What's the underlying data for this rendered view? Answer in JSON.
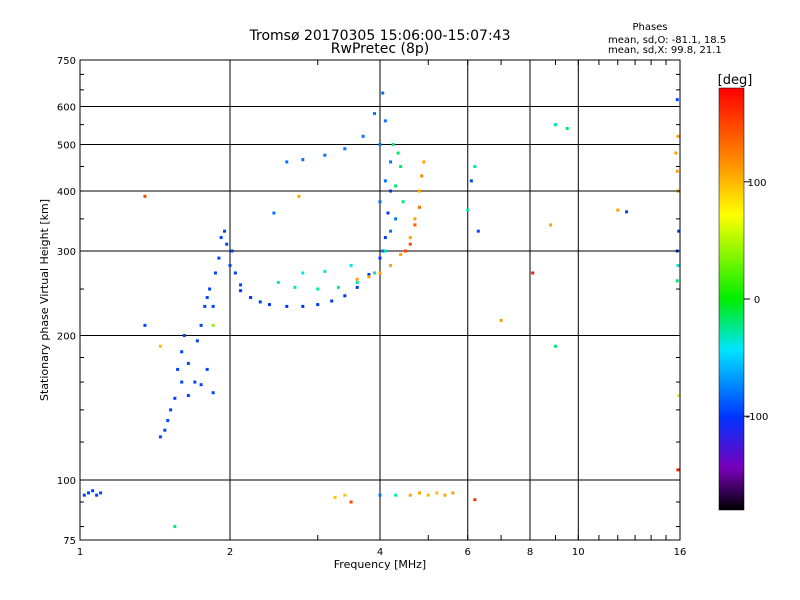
{
  "chart_data": {
    "type": "scatter",
    "title": "Tromsø 20170305 15:06:00-15:07:43",
    "subtitle": "RwPretec (8p)",
    "xlabel": "Frequency [MHz]",
    "ylabel": "Stationary phase Virtual Height [km]",
    "x_scale": "log",
    "y_scale": "log",
    "xlim": [
      1,
      16
    ],
    "ylim": [
      75,
      750
    ],
    "grid": true,
    "x_ticks": [
      1,
      2,
      4,
      6,
      8,
      10,
      16
    ],
    "x_tick_labels": [
      "1",
      "2",
      "4",
      "6",
      "8",
      "10",
      "16"
    ],
    "y_ticks": [
      75,
      100,
      200,
      300,
      400,
      500,
      600,
      750
    ],
    "y_tick_labels": [
      "75",
      "100",
      "200",
      "300",
      "400",
      "500",
      "600",
      "750"
    ],
    "colorbar": {
      "label": "[deg]",
      "range": [
        -180,
        180
      ],
      "ticks": [
        100,
        0,
        -100
      ],
      "tick_labels": [
        "100",
        "0",
        "-100"
      ]
    },
    "stats": {
      "heading": "Phases",
      "line_o": "mean, sd,O: -81.1, 18.5",
      "line_x": "mean, sd,X:  99.8, 21.1"
    },
    "series": [
      {
        "points": [
          [
            1.02,
            93,
            -95
          ],
          [
            1.04,
            94,
            -95
          ],
          [
            1.06,
            95,
            -95
          ],
          [
            1.08,
            93,
            -95
          ],
          [
            1.1,
            94,
            -95
          ],
          [
            1.45,
            123,
            -95
          ],
          [
            1.48,
            127,
            -95
          ],
          [
            1.5,
            133,
            -95
          ],
          [
            1.52,
            140,
            -95
          ],
          [
            1.55,
            148,
            -95
          ],
          [
            1.57,
            170,
            -95
          ],
          [
            1.6,
            185,
            -95
          ],
          [
            1.62,
            200,
            -95
          ],
          [
            1.65,
            175,
            -95
          ],
          [
            1.7,
            160,
            -95
          ],
          [
            1.72,
            195,
            -95
          ],
          [
            1.75,
            210,
            -95
          ],
          [
            1.78,
            230,
            -95
          ],
          [
            1.8,
            240,
            -95
          ],
          [
            1.82,
            250,
            -95
          ],
          [
            1.85,
            230,
            -95
          ],
          [
            1.87,
            270,
            -95
          ],
          [
            1.9,
            290,
            -95
          ],
          [
            1.92,
            320,
            -95
          ],
          [
            1.95,
            330,
            -95
          ],
          [
            1.97,
            310,
            -95
          ],
          [
            2.0,
            280,
            -95
          ],
          [
            2.02,
            300,
            -95
          ],
          [
            2.05,
            270,
            -95
          ],
          [
            2.1,
            255,
            -95
          ],
          [
            1.6,
            160,
            -95
          ],
          [
            1.65,
            150,
            -95
          ],
          [
            1.75,
            158,
            -95
          ],
          [
            1.8,
            170,
            -95
          ],
          [
            1.85,
            152,
            -95
          ],
          [
            2.1,
            248,
            -100
          ],
          [
            2.2,
            240,
            -100
          ],
          [
            2.3,
            235,
            -100
          ],
          [
            2.4,
            232,
            -100
          ],
          [
            2.6,
            230,
            -100
          ],
          [
            2.8,
            230,
            -100
          ],
          [
            3.0,
            232,
            -100
          ],
          [
            3.2,
            236,
            -100
          ],
          [
            3.4,
            242,
            -100
          ],
          [
            3.6,
            252,
            -100
          ],
          [
            3.8,
            268,
            -100
          ],
          [
            4.0,
            290,
            -100
          ],
          [
            4.1,
            320,
            -100
          ],
          [
            4.15,
            360,
            -100
          ],
          [
            4.2,
            400,
            -100
          ],
          [
            2.5,
            258,
            -30
          ],
          [
            2.7,
            252,
            -30
          ],
          [
            3.0,
            250,
            -30
          ],
          [
            3.3,
            252,
            -30
          ],
          [
            3.6,
            258,
            -30
          ],
          [
            3.9,
            270,
            -30
          ],
          [
            4.1,
            300,
            -30
          ],
          [
            2.8,
            270,
            -40
          ],
          [
            3.1,
            272,
            -40
          ],
          [
            3.5,
            280,
            -40
          ],
          [
            2.6,
            460,
            -80
          ],
          [
            2.8,
            465,
            -80
          ],
          [
            3.1,
            475,
            -80
          ],
          [
            3.4,
            490,
            -80
          ],
          [
            3.7,
            520,
            -80
          ],
          [
            3.9,
            580,
            -80
          ],
          [
            4.05,
            640,
            -80
          ],
          [
            4.1,
            560,
            -80
          ],
          [
            4.0,
            500,
            -80
          ],
          [
            4.2,
            460,
            -80
          ],
          [
            4.1,
            420,
            -80
          ],
          [
            4.0,
            380,
            -80
          ],
          [
            4.3,
            350,
            -80
          ],
          [
            4.2,
            330,
            -80
          ],
          [
            4.05,
            300,
            -80
          ],
          [
            4.25,
            500,
            -20
          ],
          [
            4.35,
            480,
            -20
          ],
          [
            4.4,
            450,
            -20
          ],
          [
            4.3,
            410,
            -20
          ],
          [
            4.45,
            380,
            -20
          ],
          [
            3.6,
            262,
            110
          ],
          [
            3.8,
            265,
            110
          ],
          [
            4.0,
            270,
            110
          ],
          [
            4.2,
            280,
            110
          ],
          [
            4.4,
            295,
            110
          ],
          [
            4.6,
            320,
            110
          ],
          [
            4.7,
            350,
            110
          ],
          [
            4.8,
            400,
            110
          ],
          [
            4.9,
            460,
            110
          ],
          [
            4.85,
            430,
            120
          ],
          [
            4.5,
            300,
            150
          ],
          [
            4.6,
            310,
            150
          ],
          [
            4.7,
            340,
            140
          ],
          [
            4.8,
            370,
            130
          ],
          [
            3.25,
            92,
            95
          ],
          [
            3.4,
            93,
            95
          ],
          [
            3.5,
            90,
            150
          ],
          [
            4.0,
            93,
            -80
          ],
          [
            4.3,
            93,
            -30
          ],
          [
            4.6,
            93,
            110
          ],
          [
            4.8,
            94,
            110
          ],
          [
            5.0,
            93,
            100
          ],
          [
            5.2,
            94,
            100
          ],
          [
            5.4,
            93,
            110
          ],
          [
            5.6,
            94,
            110
          ],
          [
            6.2,
            91,
            160
          ],
          [
            1.55,
            80,
            -20
          ],
          [
            1.35,
            210,
            -95
          ],
          [
            1.85,
            210,
            40
          ],
          [
            1.45,
            190,
            100
          ],
          [
            1.35,
            390,
            150
          ],
          [
            2.45,
            360,
            -80
          ],
          [
            2.75,
            390,
            110
          ],
          [
            6.0,
            365,
            -30
          ],
          [
            6.2,
            450,
            -30
          ],
          [
            6.1,
            420,
            -95
          ],
          [
            6.3,
            330,
            -95
          ],
          [
            7.0,
            215,
            110
          ],
          [
            8.1,
            270,
            170
          ],
          [
            8.8,
            340,
            110
          ],
          [
            9.0,
            550,
            -30
          ],
          [
            9.5,
            540,
            -20
          ],
          [
            9.0,
            190,
            -20
          ],
          [
            12.0,
            365,
            110
          ],
          [
            12.5,
            362,
            -95
          ],
          [
            15.8,
            620,
            -95
          ],
          [
            15.85,
            520,
            110
          ],
          [
            15.7,
            480,
            110
          ],
          [
            15.8,
            440,
            110
          ],
          [
            15.85,
            400,
            110
          ],
          [
            15.9,
            330,
            -95
          ],
          [
            15.8,
            300,
            -95
          ],
          [
            15.85,
            280,
            -40
          ],
          [
            15.8,
            260,
            -20
          ],
          [
            15.9,
            150,
            60
          ],
          [
            15.85,
            105,
            170
          ]
        ]
      }
    ]
  }
}
